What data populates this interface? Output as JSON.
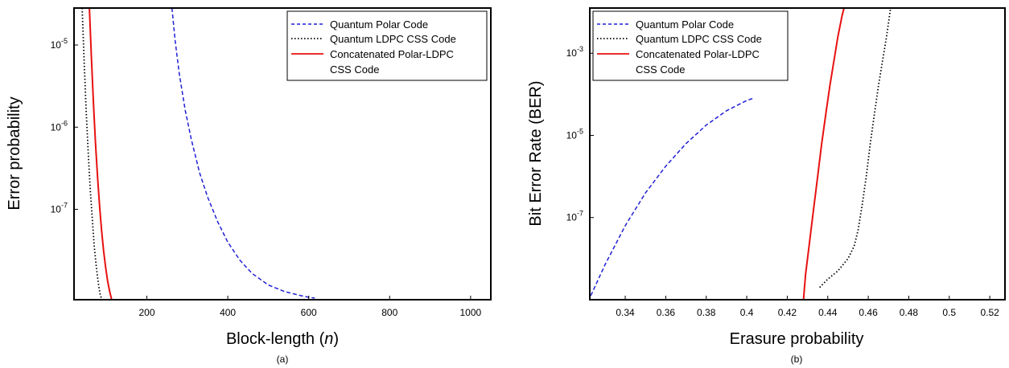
{
  "chart_data": [
    {
      "type": "line",
      "caption": "(a)",
      "xlabel_prefix": "Block-length (",
      "xlabel_var": "n",
      "xlabel_suffix": ")",
      "ylabel": "Error probability",
      "xlim": [
        20,
        1050
      ],
      "ylim_exp": [
        -8.1,
        -4.55
      ],
      "y_scale": "log",
      "x_ticks": [
        200,
        400,
        600,
        800,
        1000
      ],
      "x_tick_labels": [
        "200",
        "400",
        "600",
        "800",
        "1000"
      ],
      "y_ticks_exp": [
        -5,
        -6,
        -7
      ],
      "y_tick_base": "10",
      "y_tick_exps": [
        "-5",
        "-6",
        "-7"
      ],
      "grid": false,
      "legend_position": "top-right",
      "series": [
        {
          "name": "Quantum Polar Code",
          "color": "#1f1fd6",
          "style": "dashed",
          "x": [
            262,
            270,
            280,
            295,
            310,
            330,
            350,
            375,
            400,
            430,
            460,
            500,
            540,
            580,
            600,
            615
          ],
          "y_exp": [
            -4.55,
            -4.95,
            -5.35,
            -5.8,
            -6.15,
            -6.55,
            -6.85,
            -7.15,
            -7.4,
            -7.62,
            -7.78,
            -7.92,
            -8.0,
            -8.05,
            -8.07,
            -8.08
          ]
        },
        {
          "name": "Quantum LDPC CSS Code",
          "color": "#000000",
          "style": "dotted",
          "x": [
            40,
            45,
            50,
            55,
            60,
            65,
            70,
            75,
            80,
            85,
            90
          ],
          "y_exp": [
            -4.55,
            -5.2,
            -5.8,
            -6.3,
            -6.75,
            -7.1,
            -7.45,
            -7.7,
            -7.9,
            -8.05,
            -8.1
          ]
        },
        {
          "name": "Concatenated Polar-LDPC CSS Code",
          "name_line1": "Concatenated Polar-LDPC",
          "name_line2": "CSS Code",
          "color": "#e81010",
          "style": "solid",
          "x": [
            58,
            63,
            68,
            73,
            78,
            83,
            88,
            93,
            98,
            103,
            108,
            113
          ],
          "y_exp": [
            -4.55,
            -5.15,
            -5.7,
            -6.2,
            -6.6,
            -6.95,
            -7.25,
            -7.5,
            -7.7,
            -7.87,
            -8.0,
            -8.1
          ]
        }
      ]
    },
    {
      "type": "line",
      "caption": "(b)",
      "xlabel": "Erasure probability",
      "ylabel": "Bit Error Rate (BER)",
      "xlim": [
        0.3225,
        0.5275
      ],
      "ylim_exp": [
        -9,
        -1.9
      ],
      "y_scale": "log",
      "x_ticks": [
        0.34,
        0.36,
        0.38,
        0.4,
        0.42,
        0.44,
        0.46,
        0.48,
        0.5,
        0.52
      ],
      "x_tick_labels": [
        "0.34",
        "0.36",
        "0.38",
        "0.4",
        "0.42",
        "0.44",
        "0.46",
        "0.48",
        "0.5",
        "0.52"
      ],
      "y_ticks_exp": [
        -3,
        -5,
        -7
      ],
      "y_tick_base": "10",
      "y_tick_exps": [
        "-3",
        "-5",
        "-7"
      ],
      "grid": false,
      "legend_position": "top-left",
      "series": [
        {
          "name": "Quantum Polar Code",
          "color": "#1f1fd6",
          "style": "dashed",
          "x": [
            0.323,
            0.33,
            0.34,
            0.35,
            0.36,
            0.37,
            0.38,
            0.39,
            0.4,
            0.403
          ],
          "y_exp": [
            -8.9,
            -8.15,
            -7.2,
            -6.4,
            -5.75,
            -5.2,
            -4.75,
            -4.4,
            -4.15,
            -4.1
          ]
        },
        {
          "name": "Quantum LDPC CSS Code",
          "color": "#000000",
          "style": "dotted",
          "x": [
            0.436,
            0.44,
            0.445,
            0.45,
            0.453,
            0.455,
            0.457,
            0.459,
            0.461,
            0.463,
            0.465,
            0.467,
            0.469,
            0.471
          ],
          "y_exp": [
            -8.7,
            -8.5,
            -8.3,
            -8.0,
            -7.7,
            -7.3,
            -6.7,
            -6.0,
            -5.2,
            -4.5,
            -3.8,
            -3.2,
            -2.6,
            -1.9
          ]
        },
        {
          "name": "Concatenated Polar-LDPC CSS Code",
          "name_line1": "Concatenated Polar-LDPC",
          "name_line2": "CSS Code",
          "color": "#e81010",
          "style": "solid",
          "x": [
            0.428,
            0.429,
            0.431,
            0.433,
            0.435,
            0.437,
            0.439,
            0.441,
            0.443,
            0.445,
            0.447,
            0.448
          ],
          "y_exp": [
            -9.0,
            -8.4,
            -7.6,
            -6.8,
            -6.0,
            -5.2,
            -4.5,
            -3.8,
            -3.2,
            -2.6,
            -2.1,
            -1.9
          ]
        }
      ]
    }
  ]
}
